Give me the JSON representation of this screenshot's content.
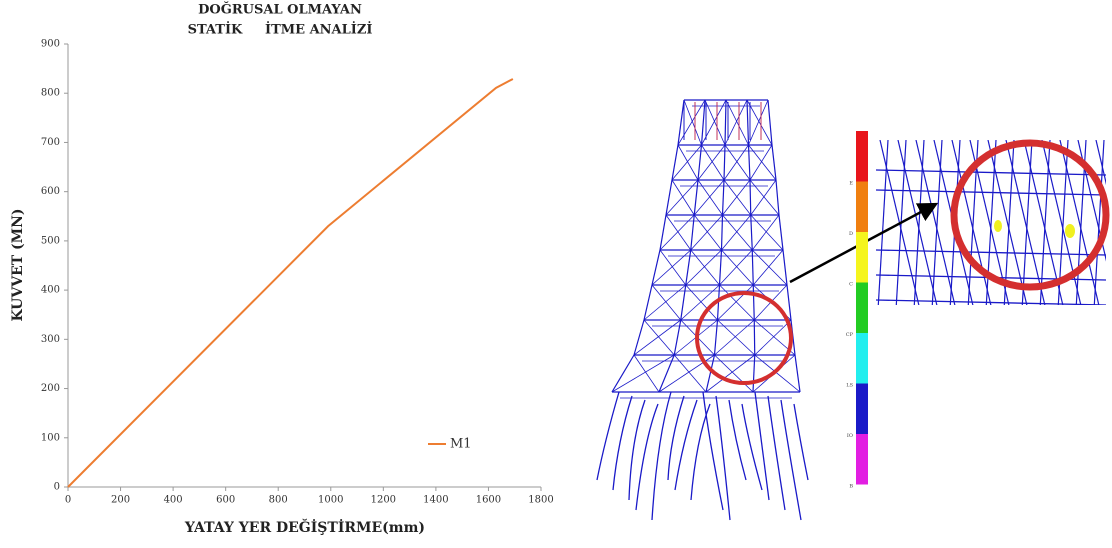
{
  "chart_data": {
    "type": "line",
    "title": [
      "DOĞRUSAL OLMAYAN",
      "STATİK     İTME ANALİZİ"
    ],
    "x_label": "YATAY YER DEĞİŞTİRME(mm)",
    "y_label": "KUVVET (MN)",
    "x": [
      0,
      990,
      1629,
      1693
    ],
    "series": [
      {
        "name": "M1",
        "color": "#ed7d31",
        "values": [
          0,
          530,
          811,
          829
        ]
      }
    ],
    "xlim": [
      0,
      1800
    ],
    "xticks": [
      0,
      200,
      400,
      600,
      800,
      1000,
      1200,
      1400,
      1600,
      1800
    ],
    "ylim": [
      0,
      900
    ],
    "yticks": [
      0,
      100,
      200,
      300,
      400,
      500,
      600,
      700,
      800,
      900
    ],
    "grid": false,
    "legend": "lower right"
  },
  "figure": {
    "scale_labels": [
      "E",
      "D",
      "C",
      "CP",
      "LS",
      "IO",
      "B"
    ]
  }
}
